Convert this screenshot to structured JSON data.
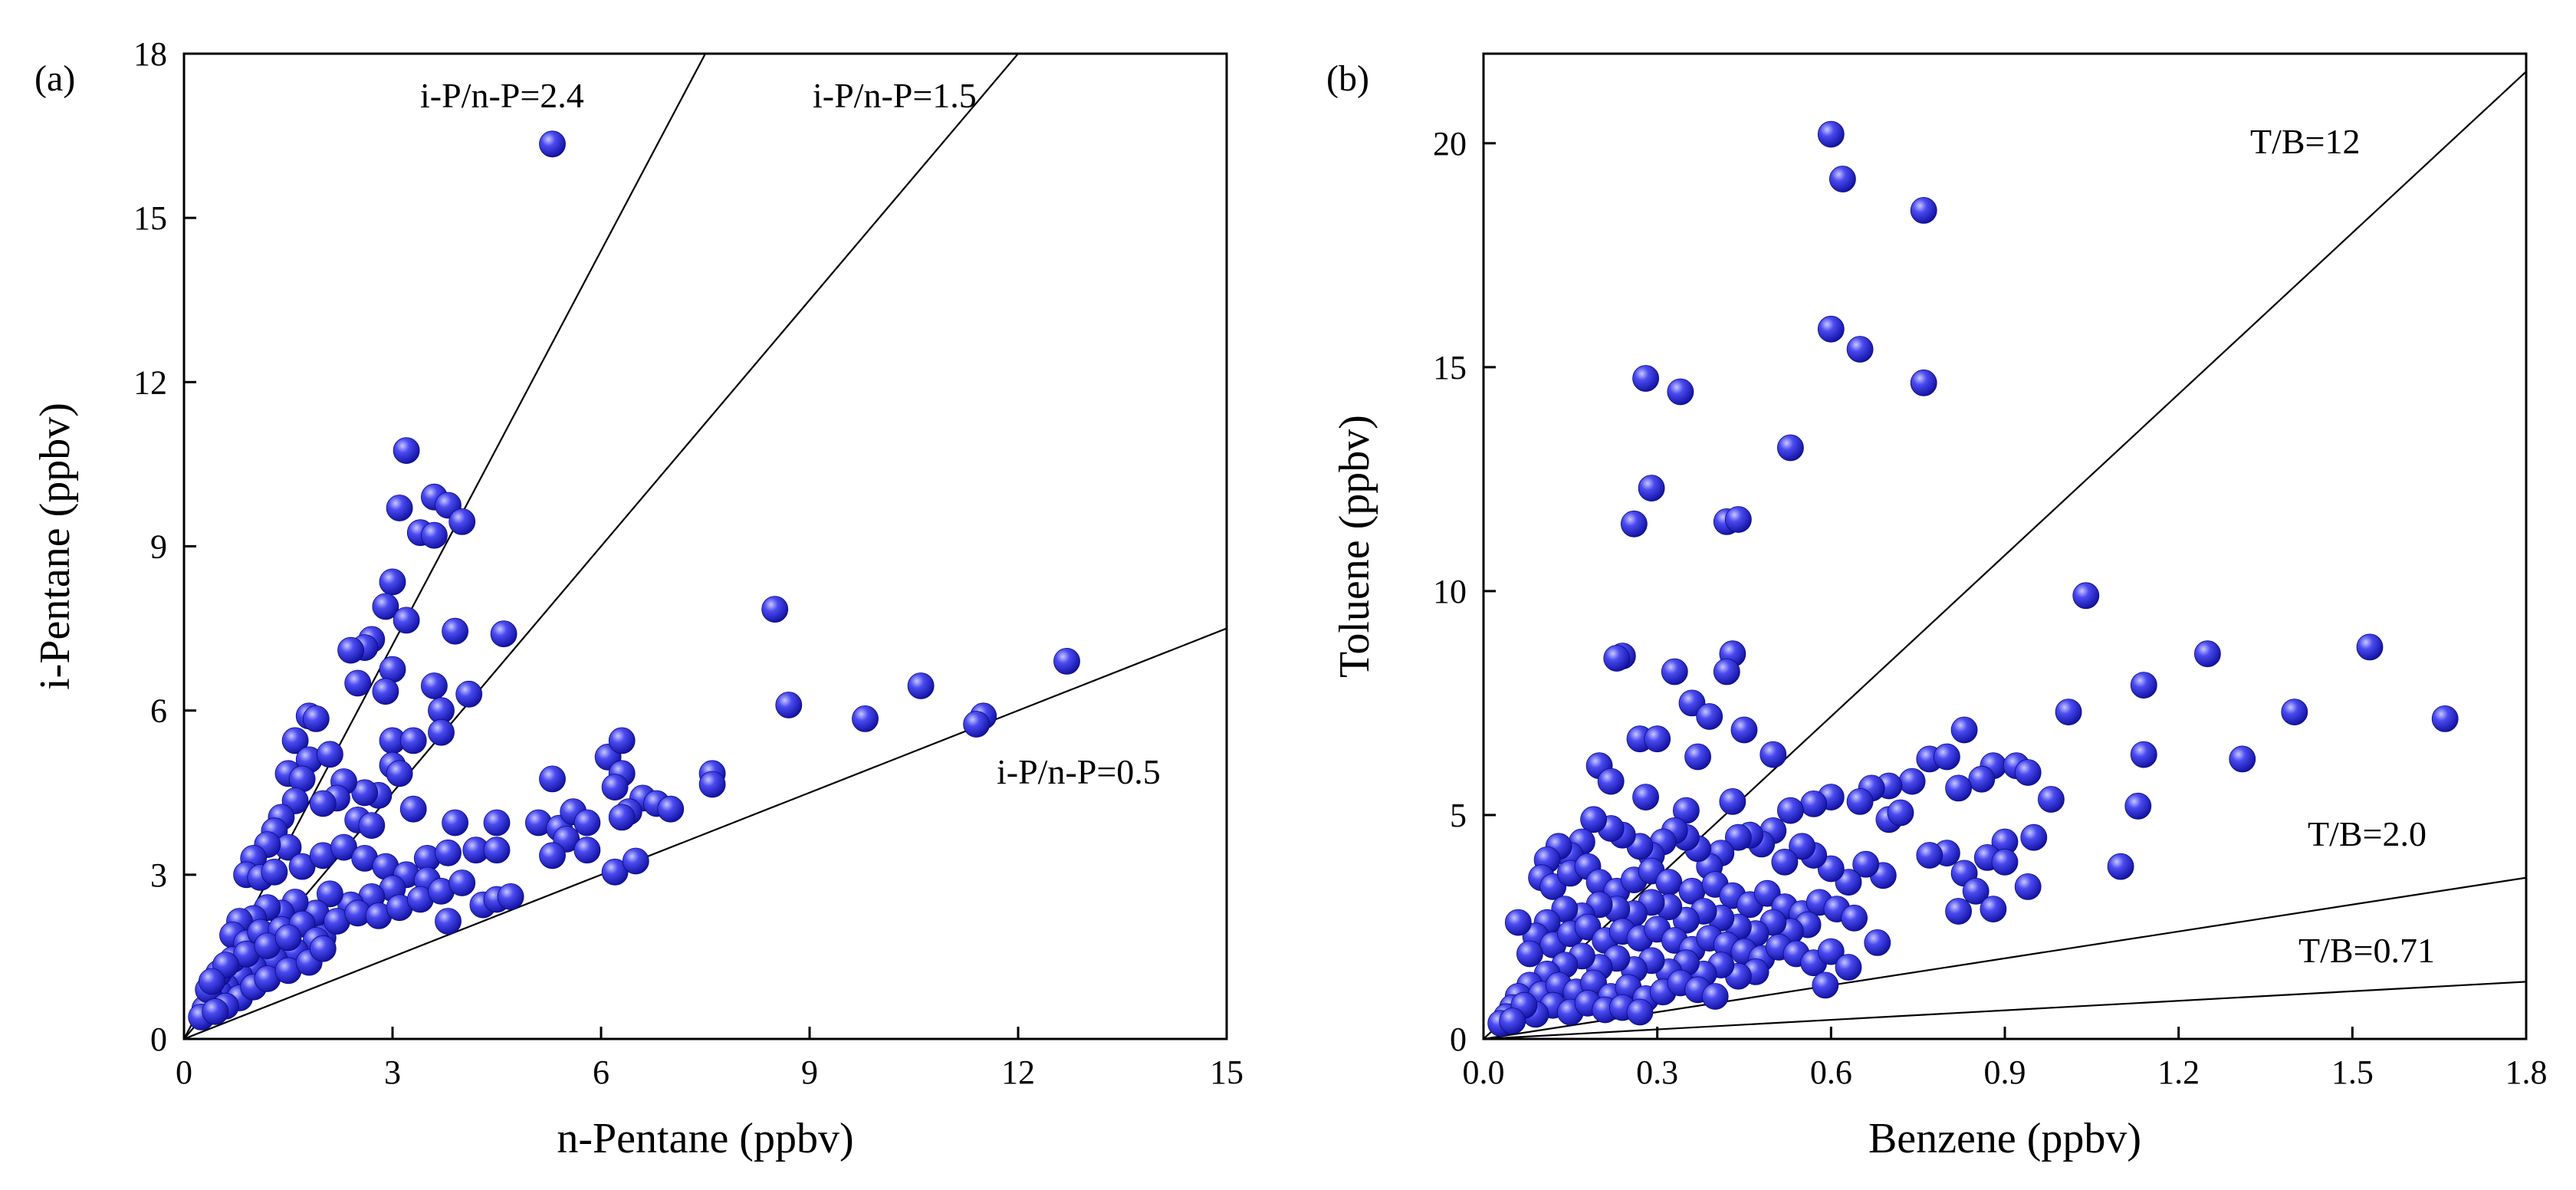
{
  "figure": {
    "background": "#ffffff"
  },
  "chart_data": [
    {
      "type": "scatter",
      "panel_label": "(a)",
      "xlabel": "n-Pentane (ppbv)",
      "ylabel": "i-Pentane (ppbv)",
      "xlim": [
        0,
        15
      ],
      "ylim": [
        0,
        18
      ],
      "xticks": [
        0,
        3,
        6,
        9,
        12,
        15
      ],
      "yticks": [
        0,
        3,
        6,
        9,
        12,
        15,
        18
      ],
      "grid": false,
      "marker_color": "#2222dd",
      "reference_lines": [
        {
          "label": "i-P/n-P=2.4",
          "slope": 2.4
        },
        {
          "label": "i-P/n-P=1.5",
          "slope": 1.5
        },
        {
          "label": "i-P/n-P=0.5",
          "slope": 0.5
        }
      ],
      "points": [
        [
          5.3,
          16.35
        ],
        [
          3.2,
          10.75
        ],
        [
          3.6,
          9.9
        ],
        [
          3.8,
          9.75
        ],
        [
          3.1,
          9.7
        ],
        [
          4.0,
          9.45
        ],
        [
          3.4,
          9.25
        ],
        [
          3.6,
          9.2
        ],
        [
          3.0,
          8.35
        ],
        [
          2.9,
          7.9
        ],
        [
          3.2,
          7.65
        ],
        [
          2.7,
          7.3
        ],
        [
          2.6,
          7.15
        ],
        [
          3.9,
          7.45
        ],
        [
          4.6,
          7.4
        ],
        [
          2.4,
          7.1
        ],
        [
          3.0,
          6.75
        ],
        [
          2.5,
          6.5
        ],
        [
          2.9,
          6.35
        ],
        [
          3.6,
          6.45
        ],
        [
          4.1,
          6.3
        ],
        [
          3.7,
          6.0
        ],
        [
          3.7,
          5.6
        ],
        [
          3.0,
          5.45
        ],
        [
          3.3,
          5.45
        ],
        [
          3.0,
          5.0
        ],
        [
          3.1,
          4.85
        ],
        [
          3.3,
          4.2
        ],
        [
          3.9,
          3.95
        ],
        [
          4.5,
          3.95
        ],
        [
          2.8,
          4.45
        ],
        [
          2.6,
          4.5
        ],
        [
          2.3,
          4.7
        ],
        [
          1.8,
          5.9
        ],
        [
          1.9,
          5.85
        ],
        [
          1.6,
          5.45
        ],
        [
          1.8,
          5.1
        ],
        [
          2.1,
          5.2
        ],
        [
          1.5,
          4.85
        ],
        [
          1.7,
          4.75
        ],
        [
          2.2,
          4.4
        ],
        [
          2.0,
          4.3
        ],
        [
          2.5,
          4.0
        ],
        [
          2.7,
          3.9
        ],
        [
          1.6,
          4.35
        ],
        [
          1.4,
          4.05
        ],
        [
          1.3,
          3.8
        ],
        [
          1.5,
          3.5
        ],
        [
          1.2,
          3.55
        ],
        [
          1.0,
          3.3
        ],
        [
          0.9,
          3.0
        ],
        [
          1.1,
          2.95
        ],
        [
          1.3,
          3.05
        ],
        [
          1.7,
          3.15
        ],
        [
          2.0,
          3.35
        ],
        [
          2.3,
          3.5
        ],
        [
          2.6,
          3.3
        ],
        [
          2.9,
          3.15
        ],
        [
          3.2,
          3.0
        ],
        [
          3.5,
          3.3
        ],
        [
          3.8,
          3.4
        ],
        [
          4.2,
          3.45
        ],
        [
          4.5,
          3.45
        ],
        [
          3.5,
          2.9
        ],
        [
          3.0,
          2.75
        ],
        [
          2.7,
          2.6
        ],
        [
          2.4,
          2.45
        ],
        [
          2.1,
          2.65
        ],
        [
          1.9,
          2.3
        ],
        [
          1.6,
          2.5
        ],
        [
          1.4,
          2.3
        ],
        [
          1.2,
          2.4
        ],
        [
          1.0,
          2.2
        ],
        [
          0.8,
          2.15
        ],
        [
          0.7,
          1.9
        ],
        [
          0.9,
          1.75
        ],
        [
          1.1,
          1.95
        ],
        [
          1.4,
          2.0
        ],
        [
          1.7,
          2.1
        ],
        [
          2.0,
          1.85
        ],
        [
          2.2,
          2.15
        ],
        [
          2.5,
          2.3
        ],
        [
          2.8,
          2.25
        ],
        [
          3.1,
          2.4
        ],
        [
          3.4,
          2.55
        ],
        [
          3.7,
          2.7
        ],
        [
          4.0,
          2.85
        ],
        [
          3.8,
          2.15
        ],
        [
          4.3,
          2.45
        ],
        [
          4.5,
          2.55
        ],
        [
          4.7,
          2.6
        ],
        [
          1.9,
          1.8
        ],
        [
          1.6,
          1.6
        ],
        [
          1.3,
          1.45
        ],
        [
          1.0,
          1.3
        ],
        [
          0.8,
          1.15
        ],
        [
          0.6,
          0.95
        ],
        [
          0.5,
          0.85
        ],
        [
          0.4,
          0.7
        ],
        [
          0.3,
          0.55
        ],
        [
          0.25,
          0.4
        ],
        [
          0.35,
          0.9
        ],
        [
          0.5,
          1.2
        ],
        [
          0.7,
          1.45
        ],
        [
          0.9,
          1.55
        ],
        [
          1.2,
          1.7
        ],
        [
          1.5,
          1.85
        ],
        [
          0.6,
          1.35
        ],
        [
          0.4,
          1.05
        ],
        [
          0.8,
          0.75
        ],
        [
          0.6,
          0.6
        ],
        [
          0.45,
          0.5
        ],
        [
          1.0,
          0.95
        ],
        [
          1.2,
          1.1
        ],
        [
          1.5,
          1.25
        ],
        [
          1.8,
          1.4
        ],
        [
          2.0,
          1.65
        ],
        [
          5.3,
          4.75
        ],
        [
          5.1,
          3.95
        ],
        [
          5.4,
          3.85
        ],
        [
          5.6,
          4.15
        ],
        [
          5.8,
          3.95
        ],
        [
          5.5,
          3.65
        ],
        [
          5.3,
          3.35
        ],
        [
          5.8,
          3.45
        ],
        [
          6.1,
          5.15
        ],
        [
          6.3,
          5.45
        ],
        [
          6.3,
          4.85
        ],
        [
          6.6,
          4.4
        ],
        [
          6.2,
          4.6
        ],
        [
          6.4,
          4.15
        ],
        [
          6.8,
          4.3
        ],
        [
          7.0,
          4.2
        ],
        [
          7.6,
          4.85
        ],
        [
          7.6,
          4.65
        ],
        [
          6.3,
          4.05
        ],
        [
          6.2,
          3.05
        ],
        [
          6.5,
          3.25
        ],
        [
          8.5,
          7.85
        ],
        [
          8.7,
          6.1
        ],
        [
          9.8,
          5.85
        ],
        [
          10.6,
          6.45
        ],
        [
          11.5,
          5.9
        ],
        [
          11.4,
          5.75
        ],
        [
          12.7,
          6.9
        ]
      ]
    },
    {
      "type": "scatter",
      "panel_label": "(b)",
      "xlabel": "Benzene (ppbv)",
      "ylabel": "Toluene (ppbv)",
      "xlim": [
        0,
        1.8
      ],
      "ylim": [
        0,
        22
      ],
      "xticks": [
        0.0,
        0.3,
        0.6,
        0.9,
        1.2,
        1.5,
        1.8
      ],
      "yticks": [
        0,
        5,
        10,
        15,
        20
      ],
      "grid": false,
      "marker_color": "#2222dd",
      "reference_lines": [
        {
          "label": "T/B=12",
          "slope": 12
        },
        {
          "label": "T/B=2.0",
          "slope": 2.0
        },
        {
          "label": "T/B=0.71",
          "slope": 0.71
        }
      ],
      "points": [
        [
          0.6,
          20.2
        ],
        [
          0.62,
          19.2
        ],
        [
          0.76,
          18.5
        ],
        [
          0.6,
          15.85
        ],
        [
          0.65,
          15.4
        ],
        [
          0.76,
          14.65
        ],
        [
          0.28,
          14.75
        ],
        [
          0.34,
          14.45
        ],
        [
          0.53,
          13.2
        ],
        [
          0.29,
          12.3
        ],
        [
          0.26,
          11.5
        ],
        [
          0.42,
          11.55
        ],
        [
          0.44,
          11.6
        ],
        [
          0.24,
          8.55
        ],
        [
          0.23,
          8.5
        ],
        [
          0.33,
          8.2
        ],
        [
          0.43,
          8.6
        ],
        [
          0.42,
          8.2
        ],
        [
          0.36,
          7.5
        ],
        [
          0.39,
          7.2
        ],
        [
          0.27,
          6.7
        ],
        [
          0.3,
          6.7
        ],
        [
          0.37,
          6.3
        ],
        [
          0.45,
          6.9
        ],
        [
          0.2,
          6.1
        ],
        [
          0.22,
          5.75
        ],
        [
          0.28,
          5.4
        ],
        [
          0.35,
          5.1
        ],
        [
          0.43,
          5.3
        ],
        [
          0.5,
          6.35
        ],
        [
          1.04,
          9.9
        ],
        [
          1.53,
          8.75
        ],
        [
          1.25,
          8.6
        ],
        [
          1.14,
          7.9
        ],
        [
          1.4,
          7.3
        ],
        [
          1.01,
          7.3
        ],
        [
          1.66,
          7.15
        ],
        [
          1.14,
          6.35
        ],
        [
          1.31,
          6.25
        ],
        [
          1.13,
          5.2
        ],
        [
          1.1,
          3.85
        ],
        [
          0.83,
          6.9
        ],
        [
          0.77,
          6.25
        ],
        [
          0.8,
          6.3
        ],
        [
          0.88,
          6.1
        ],
        [
          0.92,
          6.1
        ],
        [
          0.94,
          5.95
        ],
        [
          0.86,
          5.8
        ],
        [
          0.82,
          5.6
        ],
        [
          0.74,
          5.75
        ],
        [
          0.7,
          5.65
        ],
        [
          0.67,
          5.6
        ],
        [
          0.65,
          5.3
        ],
        [
          0.6,
          5.4
        ],
        [
          0.57,
          5.25
        ],
        [
          0.53,
          5.1
        ],
        [
          0.98,
          5.35
        ],
        [
          0.95,
          4.5
        ],
        [
          0.9,
          4.4
        ],
        [
          0.87,
          4.05
        ],
        [
          0.9,
          3.95
        ],
        [
          0.8,
          4.15
        ],
        [
          0.77,
          4.1
        ],
        [
          0.7,
          4.9
        ],
        [
          0.72,
          5.05
        ],
        [
          0.83,
          3.7
        ],
        [
          0.85,
          3.3
        ],
        [
          0.94,
          3.4
        ],
        [
          0.88,
          2.9
        ],
        [
          0.82,
          2.85
        ],
        [
          0.69,
          3.65
        ],
        [
          0.66,
          3.9
        ],
        [
          0.63,
          3.5
        ],
        [
          0.6,
          3.8
        ],
        [
          0.57,
          4.1
        ],
        [
          0.55,
          4.3
        ],
        [
          0.52,
          3.95
        ],
        [
          0.5,
          4.65
        ],
        [
          0.48,
          4.35
        ],
        [
          0.46,
          4.55
        ],
        [
          0.44,
          4.5
        ],
        [
          0.41,
          4.15
        ],
        [
          0.39,
          3.85
        ],
        [
          0.37,
          4.25
        ],
        [
          0.35,
          4.5
        ],
        [
          0.33,
          4.65
        ],
        [
          0.31,
          4.4
        ],
        [
          0.29,
          4.1
        ],
        [
          0.27,
          4.3
        ],
        [
          0.24,
          4.55
        ],
        [
          0.22,
          4.7
        ],
        [
          0.19,
          4.9
        ],
        [
          0.17,
          4.4
        ],
        [
          0.15,
          4.1
        ],
        [
          0.13,
          4.3
        ],
        [
          0.11,
          4.0
        ],
        [
          0.1,
          3.6
        ],
        [
          0.12,
          3.4
        ],
        [
          0.15,
          3.7
        ],
        [
          0.18,
          3.85
        ],
        [
          0.2,
          3.5
        ],
        [
          0.23,
          3.3
        ],
        [
          0.26,
          3.55
        ],
        [
          0.29,
          3.75
        ],
        [
          0.32,
          3.5
        ],
        [
          0.36,
          3.3
        ],
        [
          0.4,
          3.45
        ],
        [
          0.43,
          3.2
        ],
        [
          0.46,
          3.0
        ],
        [
          0.49,
          3.25
        ],
        [
          0.52,
          2.95
        ],
        [
          0.55,
          2.8
        ],
        [
          0.58,
          3.05
        ],
        [
          0.61,
          2.9
        ],
        [
          0.64,
          2.7
        ],
        [
          0.56,
          2.55
        ],
        [
          0.53,
          2.4
        ],
        [
          0.5,
          2.6
        ],
        [
          0.47,
          2.35
        ],
        [
          0.44,
          2.5
        ],
        [
          0.41,
          2.7
        ],
        [
          0.38,
          2.85
        ],
        [
          0.35,
          2.65
        ],
        [
          0.32,
          2.95
        ],
        [
          0.29,
          3.05
        ],
        [
          0.26,
          2.8
        ],
        [
          0.23,
          2.9
        ],
        [
          0.2,
          3.0
        ],
        [
          0.17,
          2.75
        ],
        [
          0.14,
          2.9
        ],
        [
          0.11,
          2.6
        ],
        [
          0.09,
          2.3
        ],
        [
          0.12,
          2.1
        ],
        [
          0.15,
          2.35
        ],
        [
          0.18,
          2.5
        ],
        [
          0.21,
          2.2
        ],
        [
          0.24,
          2.4
        ],
        [
          0.27,
          2.25
        ],
        [
          0.3,
          2.45
        ],
        [
          0.33,
          2.2
        ],
        [
          0.36,
          2.0
        ],
        [
          0.39,
          2.25
        ],
        [
          0.42,
          2.1
        ],
        [
          0.45,
          1.95
        ],
        [
          0.48,
          1.8
        ],
        [
          0.51,
          2.05
        ],
        [
          0.54,
          1.9
        ],
        [
          0.57,
          1.7
        ],
        [
          0.6,
          1.95
        ],
        [
          0.63,
          1.6
        ],
        [
          0.68,
          2.15
        ],
        [
          0.59,
          1.2
        ],
        [
          0.47,
          1.5
        ],
        [
          0.44,
          1.4
        ],
        [
          0.41,
          1.65
        ],
        [
          0.38,
          1.45
        ],
        [
          0.35,
          1.7
        ],
        [
          0.32,
          1.5
        ],
        [
          0.29,
          1.75
        ],
        [
          0.26,
          1.55
        ],
        [
          0.23,
          1.8
        ],
        [
          0.2,
          1.6
        ],
        [
          0.17,
          1.85
        ],
        [
          0.14,
          1.65
        ],
        [
          0.11,
          1.45
        ],
        [
          0.08,
          1.2
        ],
        [
          0.06,
          0.95
        ],
        [
          0.05,
          0.7
        ],
        [
          0.04,
          0.5
        ],
        [
          0.03,
          0.35
        ],
        [
          0.06,
          2.6
        ],
        [
          0.08,
          1.9
        ],
        [
          0.1,
          1.0
        ],
        [
          0.13,
          1.2
        ],
        [
          0.16,
          1.05
        ],
        [
          0.19,
          1.25
        ],
        [
          0.22,
          0.95
        ],
        [
          0.25,
          1.15
        ],
        [
          0.28,
          0.9
        ],
        [
          0.31,
          1.05
        ],
        [
          0.34,
          1.25
        ],
        [
          0.37,
          1.1
        ],
        [
          0.4,
          0.95
        ],
        [
          0.12,
          0.75
        ],
        [
          0.15,
          0.6
        ],
        [
          0.18,
          0.8
        ],
        [
          0.21,
          0.65
        ],
        [
          0.24,
          0.7
        ],
        [
          0.27,
          0.6
        ],
        [
          0.09,
          0.55
        ],
        [
          0.07,
          0.75
        ],
        [
          0.05,
          0.4
        ]
      ]
    }
  ]
}
